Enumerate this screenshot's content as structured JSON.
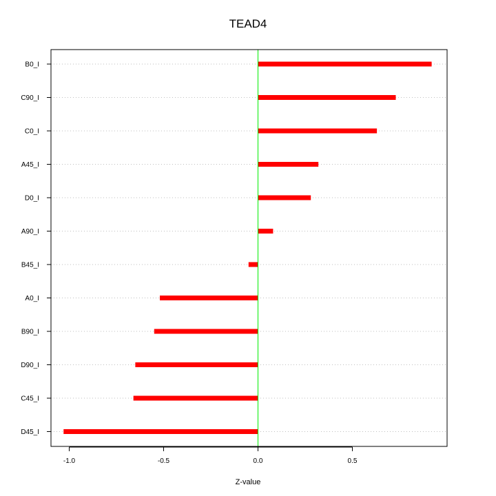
{
  "chart_data": {
    "type": "bar",
    "orientation": "horizontal",
    "title": "TEAD4",
    "xlabel": "Z-value",
    "ylabel": "",
    "xlim": [
      -1.1,
      1.0
    ],
    "xticks": [
      -1.0,
      -0.5,
      0.0,
      0.5
    ],
    "xtick_labels": [
      "-1.0",
      "-0.5",
      "0.0",
      "0.5"
    ],
    "zero_line": true,
    "grid": "horizontal dotted",
    "categories": [
      "B0_I",
      "C90_I",
      "C0_I",
      "A45_I",
      "D0_I",
      "A90_I",
      "B45_I",
      "A0_I",
      "B90_I",
      "D90_I",
      "C45_I",
      "D45_I"
    ],
    "values": [
      0.92,
      0.73,
      0.63,
      0.32,
      0.28,
      0.08,
      -0.05,
      -0.52,
      -0.55,
      -0.65,
      -0.66,
      -1.03
    ]
  },
  "colors": {
    "bar": "#ff0000",
    "zero_line": "#00ee00",
    "grid": "#bebebe",
    "axis": "#000000"
  }
}
